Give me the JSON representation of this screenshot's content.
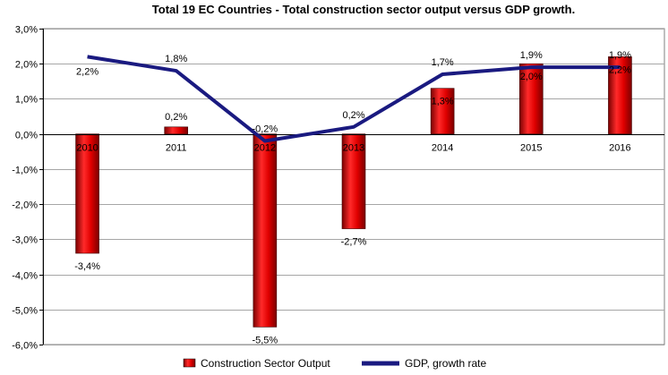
{
  "chart_data": {
    "type": "bar",
    "title": "Total 19 EC Countries - Total construction sector output versus GDP growth.",
    "categories": [
      "2010",
      "2011",
      "2012",
      "2013",
      "2014",
      "2015",
      "2016"
    ],
    "ylim": [
      -6.0,
      3.0
    ],
    "ytick_step": 1.0,
    "yticks": [
      "3,0%",
      "2,0%",
      "1,0%",
      "0,0%",
      "-1,0%",
      "-2,0%",
      "-3,0%",
      "-4,0%",
      "-5,0%",
      "-6,0%"
    ],
    "grid": true,
    "legend_position": "bottom",
    "series": [
      {
        "name": "Construction Sector Output",
        "kind": "bar",
        "color": "#d40000",
        "values": [
          -3.4,
          0.2,
          -5.5,
          -2.7,
          1.3,
          2.0,
          2.2
        ],
        "labels": [
          "-3,4%",
          "0,2%",
          "-5,5%",
          "-2,7%",
          "1,3%",
          "2,0%",
          "2,2%"
        ]
      },
      {
        "name": "GDP, growth rate",
        "kind": "line",
        "color": "#1a1a80",
        "values": [
          2.2,
          1.8,
          -0.2,
          0.2,
          1.7,
          1.9,
          1.9
        ],
        "labels": [
          "2,2%",
          "1,8%",
          "-0,2%",
          "0,2%",
          "1,7%",
          "1,9%",
          "1,9%"
        ]
      }
    ]
  }
}
